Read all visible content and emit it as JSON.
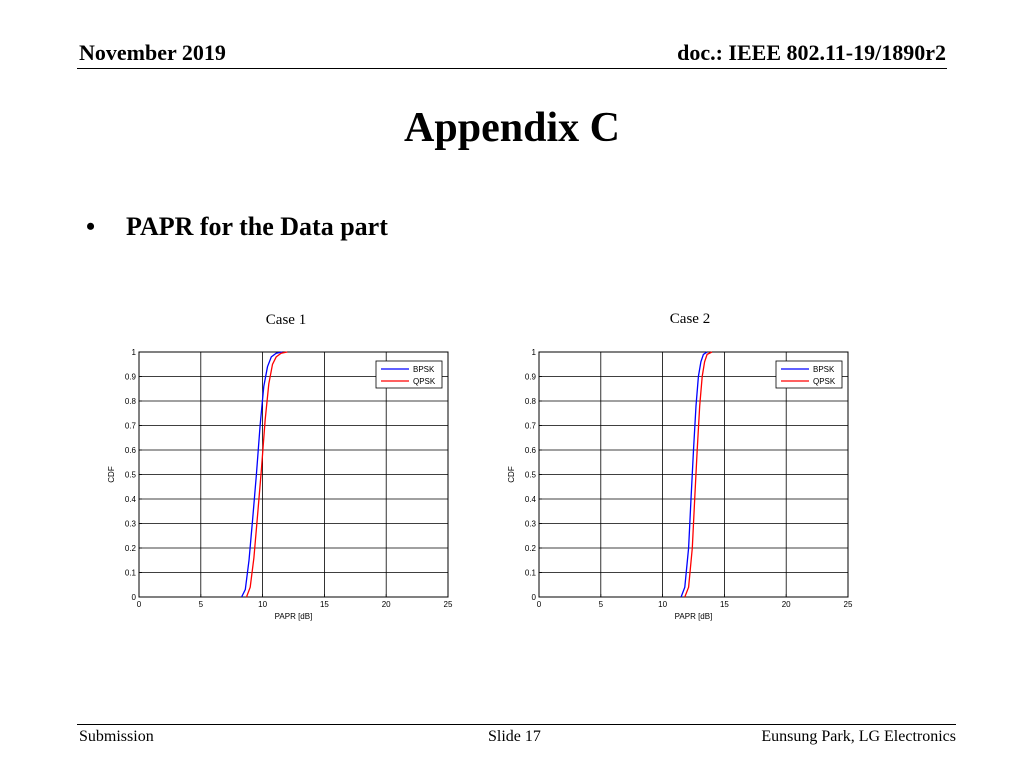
{
  "header": {
    "date": "November 2019",
    "doc": "doc.: IEEE 802.11-19/1890r2"
  },
  "title": "Appendix C",
  "bullet": {
    "dot": "•",
    "text": "PAPR for the Data part"
  },
  "footer": {
    "left": "Submission",
    "center": "Slide 17",
    "right": "Eunsung Park, LG Electronics"
  },
  "colors": {
    "bpsk": "#0000ff",
    "qpsk": "#ff0000"
  },
  "chart_data": [
    {
      "type": "line",
      "title": "Case 1",
      "xlabel": "PAPR [dB]",
      "ylabel": "CDF",
      "xlim": [
        0,
        25
      ],
      "ylim": [
        0,
        1
      ],
      "xticks": [
        0,
        5,
        10,
        15,
        20,
        25
      ],
      "yticks": [
        0,
        0.1,
        0.2,
        0.3,
        0.4,
        0.5,
        0.6,
        0.7,
        0.8,
        0.9,
        1
      ],
      "grid": true,
      "legend": "top-right",
      "series": [
        {
          "name": "BPSK",
          "x": [
            8.3,
            8.6,
            8.9,
            9.2,
            9.5,
            9.8,
            10.1,
            10.4,
            10.7,
            11.1,
            11.6
          ],
          "y": [
            0,
            0.03,
            0.15,
            0.32,
            0.5,
            0.7,
            0.86,
            0.94,
            0.98,
            0.995,
            1
          ]
        },
        {
          "name": "QPSK",
          "x": [
            8.7,
            9.0,
            9.3,
            9.6,
            9.9,
            10.2,
            10.5,
            10.8,
            11.1,
            11.5,
            12.0
          ],
          "y": [
            0,
            0.04,
            0.16,
            0.34,
            0.52,
            0.72,
            0.87,
            0.95,
            0.98,
            0.995,
            1
          ]
        }
      ]
    },
    {
      "type": "line",
      "title": "Case 2",
      "xlabel": "PAPR [dB]",
      "ylabel": "CDF",
      "xlim": [
        0,
        25
      ],
      "ylim": [
        0,
        1
      ],
      "xticks": [
        0,
        5,
        10,
        15,
        20,
        25
      ],
      "yticks": [
        0,
        0.1,
        0.2,
        0.3,
        0.4,
        0.5,
        0.6,
        0.7,
        0.8,
        0.9,
        1
      ],
      "grid": true,
      "legend": "top-right",
      "series": [
        {
          "name": "BPSK",
          "x": [
            11.5,
            11.8,
            12.1,
            12.3,
            12.5,
            12.7,
            12.9,
            13.1,
            13.3,
            13.6
          ],
          "y": [
            0,
            0.04,
            0.2,
            0.4,
            0.6,
            0.78,
            0.9,
            0.96,
            0.99,
            1
          ]
        },
        {
          "name": "QPSK",
          "x": [
            11.8,
            12.1,
            12.4,
            12.6,
            12.8,
            13.0,
            13.2,
            13.4,
            13.6,
            14.0
          ],
          "y": [
            0,
            0.04,
            0.2,
            0.4,
            0.6,
            0.78,
            0.9,
            0.96,
            0.99,
            1
          ]
        }
      ]
    }
  ]
}
